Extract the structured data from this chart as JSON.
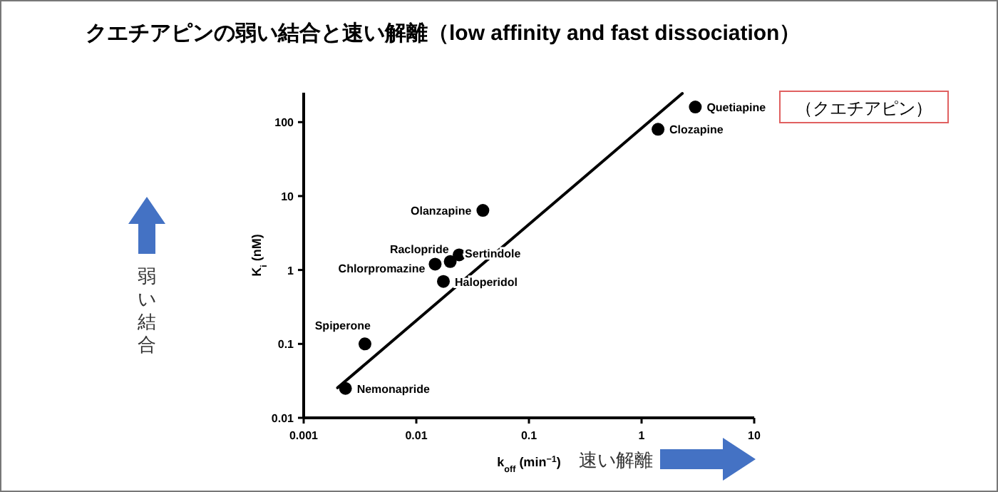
{
  "chart_data": {
    "type": "scatter",
    "title": "クエチアピンの弱い結合と速い解離（low affinity and fast dissociation）",
    "xlabel": "k$_{off}$ (min$^{−1}$)",
    "ylabel": "K$_{i}$ (nM)",
    "log": "xy",
    "grid": false,
    "marker": "circle",
    "xlim": [
      0.001,
      10
    ],
    "xticks": [
      0.001,
      0.01,
      0.1,
      1,
      10
    ],
    "ylim": [
      0.01,
      250
    ],
    "yticks": [
      0.01,
      0.1,
      1,
      10,
      100
    ],
    "series": [
      {
        "color": "#000000",
        "x": [
          3.0,
          1.4,
          0.039,
          0.02,
          0.0147,
          0.024,
          0.0174,
          0.0035,
          0.00235
        ],
        "values": [
          160,
          80,
          6.4,
          1.3,
          1.2,
          1.6,
          0.7,
          0.1,
          0.025
        ]
      },
      {
        "type": "line",
        "marker": "none",
        "color": "#000000",
        "x": [
          0.002,
          2.3
        ],
        "values": [
          0.0255,
          244
        ]
      }
    ],
    "annotations": [
      {
        "text": "Quetiapine",
        "x": 3.0,
        "y": 160
      },
      {
        "text": "Clozapine",
        "x": 1.4,
        "y": 80
      },
      {
        "text": "Olanzapine",
        "x": 0.039,
        "y": 6.4
      },
      {
        "text": "Raclopride",
        "x": 0.02,
        "y": 1.3
      },
      {
        "text": "Chlorpromazine",
        "x": 0.0147,
        "y": 1.2
      },
      {
        "text": "Sertindole",
        "x": 0.024,
        "y": 1.6
      },
      {
        "text": "Haloperidol",
        "x": 0.0174,
        "y": 0.7
      },
      {
        "text": "Spiperone",
        "x": 0.0035,
        "y": 0.1
      },
      {
        "text": "Nemonapride",
        "x": 0.00235,
        "y": 0.025
      },
      "（クエチアピン）",
      "弱い結合",
      "速い解離"
    ]
  }
}
